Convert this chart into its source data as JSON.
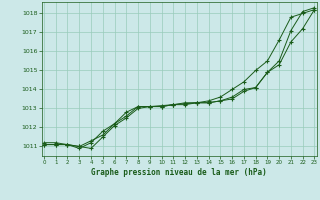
{
  "title": "Graphe pression niveau de la mer (hPa)",
  "x_min": 0,
  "x_max": 23,
  "y_min": 1010.5,
  "y_max": 1018.6,
  "yticks": [
    1011,
    1012,
    1013,
    1014,
    1015,
    1016,
    1017,
    1018
  ],
  "xticks": [
    0,
    1,
    2,
    3,
    4,
    5,
    6,
    7,
    8,
    9,
    10,
    11,
    12,
    13,
    14,
    15,
    16,
    17,
    18,
    19,
    20,
    21,
    22,
    23
  ],
  "bg_color": "#cce8e8",
  "grid_color": "#99ccbb",
  "line_color": "#1a5c1a",
  "series": [
    [
      1011.1,
      1011.1,
      1011.1,
      1011.0,
      1010.9,
      1011.5,
      1012.1,
      1012.5,
      1013.0,
      1013.1,
      1013.1,
      1013.2,
      1013.2,
      1013.3,
      1013.3,
      1013.4,
      1013.6,
      1014.0,
      1014.1,
      1014.9,
      1015.5,
      1017.1,
      1018.1,
      1018.3
    ],
    [
      1011.1,
      1011.1,
      1011.1,
      1010.9,
      1011.2,
      1011.8,
      1012.2,
      1012.8,
      1013.1,
      1013.1,
      1013.1,
      1013.2,
      1013.3,
      1013.3,
      1013.3,
      1013.4,
      1013.5,
      1013.9,
      1014.1,
      1014.9,
      1015.3,
      1016.5,
      1017.2,
      1018.2
    ],
    [
      1011.2,
      1011.2,
      1011.1,
      1011.0,
      1011.3,
      1011.6,
      1012.2,
      1012.6,
      1013.1,
      1013.1,
      1013.15,
      1013.2,
      1013.25,
      1013.3,
      1013.4,
      1013.6,
      1014.0,
      1014.4,
      1015.0,
      1015.5,
      1016.6,
      1017.8,
      1018.0,
      1018.2
    ]
  ]
}
